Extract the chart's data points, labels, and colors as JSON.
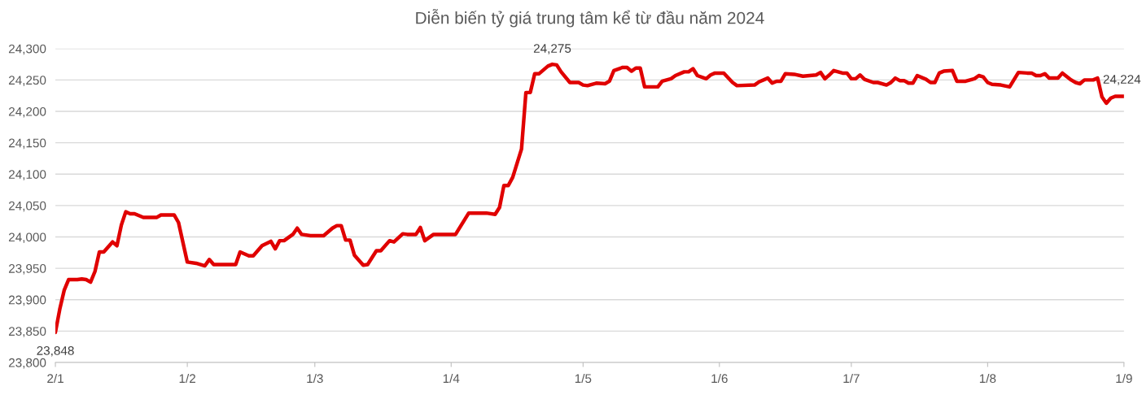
{
  "chart_data": {
    "type": "line",
    "title": "Diễn biến tỷ giá trung tâm kể từ đầu năm 2024",
    "x": [
      "2024-01-02",
      "2024-01-03",
      "2024-01-04",
      "2024-01-05",
      "2024-01-07",
      "2024-01-08",
      "2024-01-09",
      "2024-01-10",
      "2024-01-11",
      "2024-01-12",
      "2024-01-13",
      "2024-01-15",
      "2024-01-16",
      "2024-01-17",
      "2024-01-18",
      "2024-01-19",
      "2024-01-20",
      "2024-01-22",
      "2024-01-25",
      "2024-01-26",
      "2024-01-29",
      "2024-01-30",
      "2024-02-01",
      "2024-02-03",
      "2024-02-05",
      "2024-02-06",
      "2024-02-07",
      "2024-02-12",
      "2024-02-13",
      "2024-02-15",
      "2024-02-16",
      "2024-02-18",
      "2024-02-20",
      "2024-02-21",
      "2024-02-22",
      "2024-02-23",
      "2024-02-25",
      "2024-02-26",
      "2024-02-27",
      "2024-02-29",
      "2024-03-03",
      "2024-03-05",
      "2024-03-06",
      "2024-03-07",
      "2024-03-08",
      "2024-03-09",
      "2024-03-10",
      "2024-03-12",
      "2024-03-13",
      "2024-03-14",
      "2024-03-15",
      "2024-03-16",
      "2024-03-18",
      "2024-03-19",
      "2024-03-21",
      "2024-03-22",
      "2024-03-24",
      "2024-03-25",
      "2024-03-26",
      "2024-03-28",
      "2024-04-02",
      "2024-04-05",
      "2024-04-09",
      "2024-04-11",
      "2024-04-12",
      "2024-04-13",
      "2024-04-14",
      "2024-04-15",
      "2024-04-17",
      "2024-04-18",
      "2024-04-19",
      "2024-04-20",
      "2024-04-21",
      "2024-04-23",
      "2024-04-24",
      "2024-04-25",
      "2024-04-26",
      "2024-04-28",
      "2024-04-30",
      "2024-05-01",
      "2024-05-02",
      "2024-05-04",
      "2024-05-06",
      "2024-05-07",
      "2024-05-08",
      "2024-05-10",
      "2024-05-11",
      "2024-05-12",
      "2024-05-13",
      "2024-05-14",
      "2024-05-15",
      "2024-05-18",
      "2024-05-19",
      "2024-05-21",
      "2024-05-22",
      "2024-05-24",
      "2024-05-25",
      "2024-05-26",
      "2024-05-27",
      "2024-05-29",
      "2024-05-30",
      "2024-05-31",
      "2024-06-02",
      "2024-06-04",
      "2024-06-05",
      "2024-06-09",
      "2024-06-10",
      "2024-06-12",
      "2024-06-13",
      "2024-06-14",
      "2024-06-15",
      "2024-06-16",
      "2024-06-18",
      "2024-06-20",
      "2024-06-23",
      "2024-06-24",
      "2024-06-25",
      "2024-06-26",
      "2024-06-27",
      "2024-06-29",
      "2024-06-30",
      "2024-07-01",
      "2024-07-02",
      "2024-07-03",
      "2024-07-04",
      "2024-07-06",
      "2024-07-07",
      "2024-07-09",
      "2024-07-10",
      "2024-07-11",
      "2024-07-12",
      "2024-07-13",
      "2024-07-14",
      "2024-07-15",
      "2024-07-16",
      "2024-07-18",
      "2024-07-19",
      "2024-07-20",
      "2024-07-21",
      "2024-07-22",
      "2024-07-24",
      "2024-07-25",
      "2024-07-27",
      "2024-07-29",
      "2024-07-30",
      "2024-07-31",
      "2024-08-01",
      "2024-08-02",
      "2024-08-04",
      "2024-08-06",
      "2024-08-08",
      "2024-08-10",
      "2024-08-11",
      "2024-08-12",
      "2024-08-13",
      "2024-08-14",
      "2024-08-15",
      "2024-08-17",
      "2024-08-18",
      "2024-08-20",
      "2024-08-21",
      "2024-08-22",
      "2024-08-23",
      "2024-08-25",
      "2024-08-26",
      "2024-08-27",
      "2024-08-28",
      "2024-08-29",
      "2024-08-30",
      "2024-09-01"
    ],
    "series": [
      {
        "color": "#e00000",
        "values": [
          23848,
          23885,
          23915,
          23932,
          23932,
          23933,
          23932,
          23928,
          23945,
          23976,
          23976,
          23992,
          23986,
          24019,
          24040,
          24037,
          24037,
          24031,
          24031,
          24035,
          24035,
          24023,
          23960,
          23958,
          23954,
          23964,
          23956,
          23956,
          23976,
          23970,
          23970,
          23986,
          23993,
          23981,
          23994,
          23994,
          24004,
          24014,
          24004,
          24002,
          24002,
          24014,
          24018,
          24018,
          23995,
          23995,
          23971,
          23955,
          23956,
          23967,
          23978,
          23978,
          23994,
          23992,
          24005,
          24004,
          24004,
          24015,
          23994,
          24004,
          24004,
          24038,
          24038,
          24036,
          24047,
          24082,
          24082,
          24095,
          24140,
          24230,
          24230,
          24260,
          24260,
          24272,
          24275,
          24274,
          24263,
          24246,
          24246,
          24242,
          24241,
          24245,
          24244,
          24248,
          24265,
          24270,
          24270,
          24264,
          24269,
          24269,
          24239,
          24239,
          24248,
          24252,
          24257,
          24263,
          24263,
          24268,
          24257,
          24252,
          24258,
          24261,
          24261,
          24246,
          24241,
          24242,
          24247,
          24253,
          24245,
          24248,
          24248,
          24260,
          24259,
          24256,
          24258,
          24262,
          24252,
          24258,
          24265,
          24261,
          24261,
          24252,
          24252,
          24258,
          24251,
          24246,
          24246,
          24242,
          24246,
          24253,
          24249,
          24249,
          24245,
          24245,
          24257,
          24251,
          24246,
          24246,
          24261,
          24264,
          24265,
          24248,
          24248,
          24252,
          24257,
          24255,
          24246,
          24243,
          24242,
          24239,
          24262,
          24261,
          24261,
          24257,
          24257,
          24260,
          24253,
          24253,
          24261,
          24250,
          24246,
          24244,
          24250,
          24250,
          24253,
          24223,
          24213,
          24221,
          24224,
          24224
        ]
      }
    ],
    "annotations": [
      {
        "text": "23,848",
        "x": "2024-01-02",
        "y": 23848
      },
      {
        "text": "24,275",
        "x": "2024-04-24",
        "y": 24275
      },
      {
        "text": "24,224",
        "x": "2024-09-01",
        "y": 24224
      }
    ],
    "xlim": [
      "2024-01-02",
      "2024-09-01"
    ],
    "xticks": [
      {
        "value": "2024-01-02",
        "label": "2/1"
      },
      {
        "value": "2024-02-01",
        "label": "1/2"
      },
      {
        "value": "2024-03-01",
        "label": "1/3"
      },
      {
        "value": "2024-04-01",
        "label": "1/4"
      },
      {
        "value": "2024-05-01",
        "label": "1/5"
      },
      {
        "value": "2024-06-01",
        "label": "1/6"
      },
      {
        "value": "2024-07-01",
        "label": "1/7"
      },
      {
        "value": "2024-08-01",
        "label": "1/8"
      },
      {
        "value": "2024-09-01",
        "label": "1/9"
      }
    ],
    "ylim": [
      23800,
      24300
    ],
    "yticks": [
      {
        "value": 23800,
        "label": "23,800"
      },
      {
        "value": 23850,
        "label": "23,850"
      },
      {
        "value": 23900,
        "label": "23,900"
      },
      {
        "value": 23950,
        "label": "23,950"
      },
      {
        "value": 24000,
        "label": "24,000"
      },
      {
        "value": 24050,
        "label": "24,050"
      },
      {
        "value": 24100,
        "label": "24,100"
      },
      {
        "value": 24150,
        "label": "24,150"
      },
      {
        "value": 24200,
        "label": "24,200"
      },
      {
        "value": 24250,
        "label": "24,250"
      },
      {
        "value": 24300,
        "label": "24,300"
      }
    ],
    "grid": "y",
    "marker": "none",
    "line_style": "solid",
    "legend": false
  }
}
